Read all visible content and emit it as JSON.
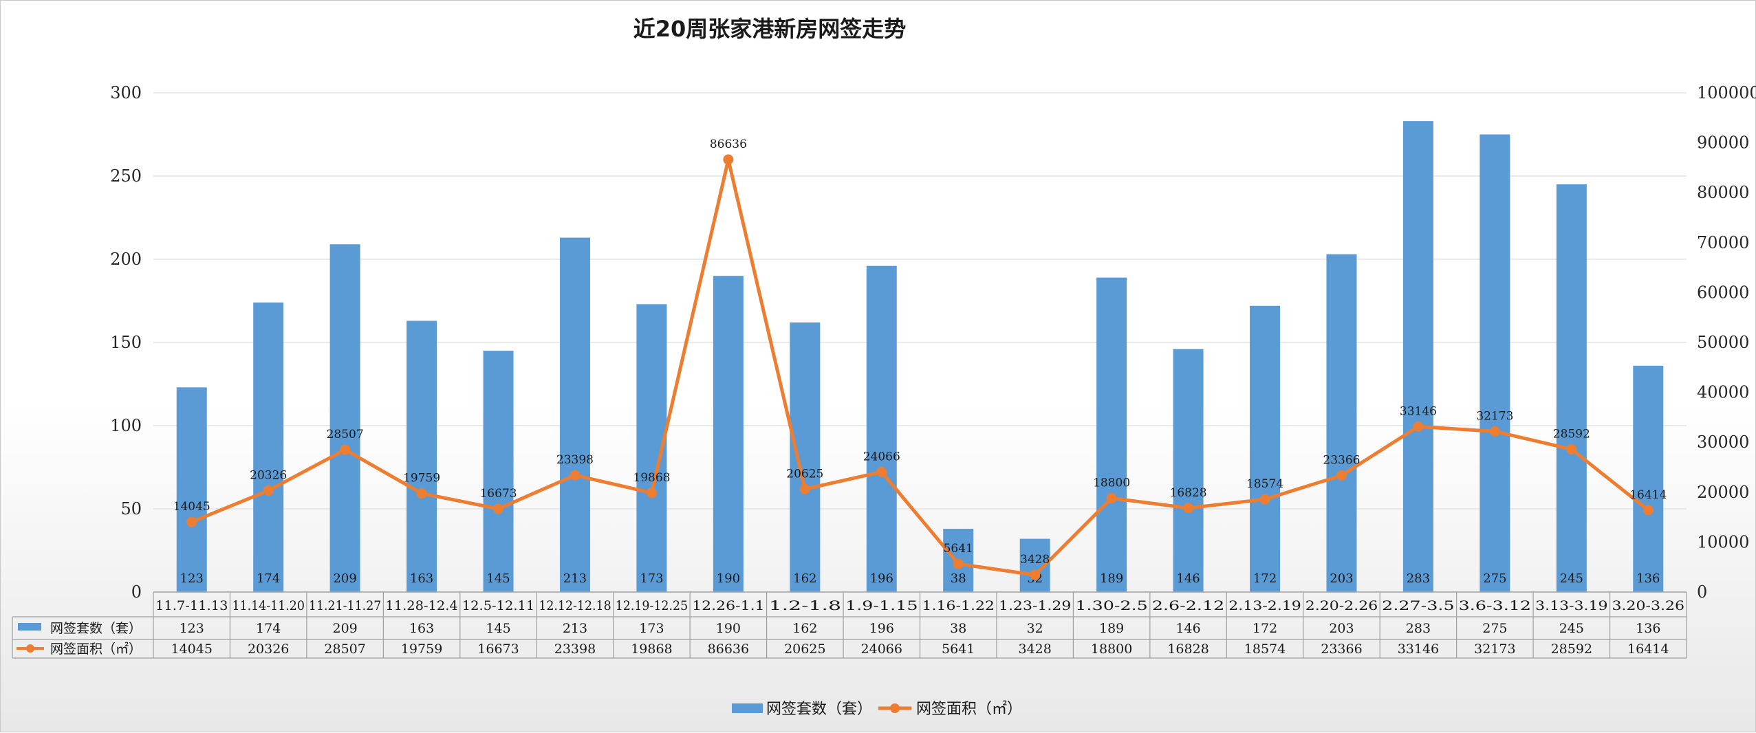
{
  "chart_data": {
    "type": "bar",
    "title": "近20周张家港新房网签走势",
    "categories": [
      "11.7-11.13",
      "11.14-11.20",
      "11.21-11.27",
      "11.28-12.4",
      "12.5-12.11",
      "12.12-12.18",
      "12.19-12.25",
      "12.26-1.1",
      "1.2-1.8",
      "1.9-1.15",
      "1.16-1.22",
      "1.23-1.29",
      "1.30-2.5",
      "2.6-2.12",
      "2.13-2.19",
      "2.20-2.26",
      "2.27-3.5",
      "3.6-3.12",
      "3.13-3.19",
      "3.20-3.26"
    ],
    "series": [
      {
        "name": "网签套数（套）",
        "type": "bar",
        "axis": "left",
        "color": "#5B9BD5",
        "values": [
          123,
          174,
          209,
          163,
          145,
          213,
          173,
          190,
          162,
          196,
          38,
          32,
          189,
          146,
          172,
          203,
          283,
          275,
          245,
          136
        ]
      },
      {
        "name": "网签面积（㎡）",
        "type": "line",
        "axis": "right",
        "color": "#ED7D31",
        "values": [
          14045,
          20326,
          28507,
          19759,
          16673,
          23398,
          19868,
          86636,
          20625,
          24066,
          5641,
          3428,
          18800,
          16828,
          18574,
          23366,
          33146,
          32173,
          28592,
          16414
        ]
      }
    ],
    "y_left": {
      "min": 0,
      "max": 300,
      "ticks": [
        0,
        50,
        100,
        150,
        200,
        250,
        300
      ]
    },
    "y_right": {
      "min": 0,
      "max": 100000,
      "ticks": [
        0,
        10000,
        20000,
        30000,
        40000,
        50000,
        60000,
        70000,
        80000,
        90000,
        100000
      ]
    },
    "grid": true,
    "legend_position": "bottom",
    "data_table": true
  }
}
